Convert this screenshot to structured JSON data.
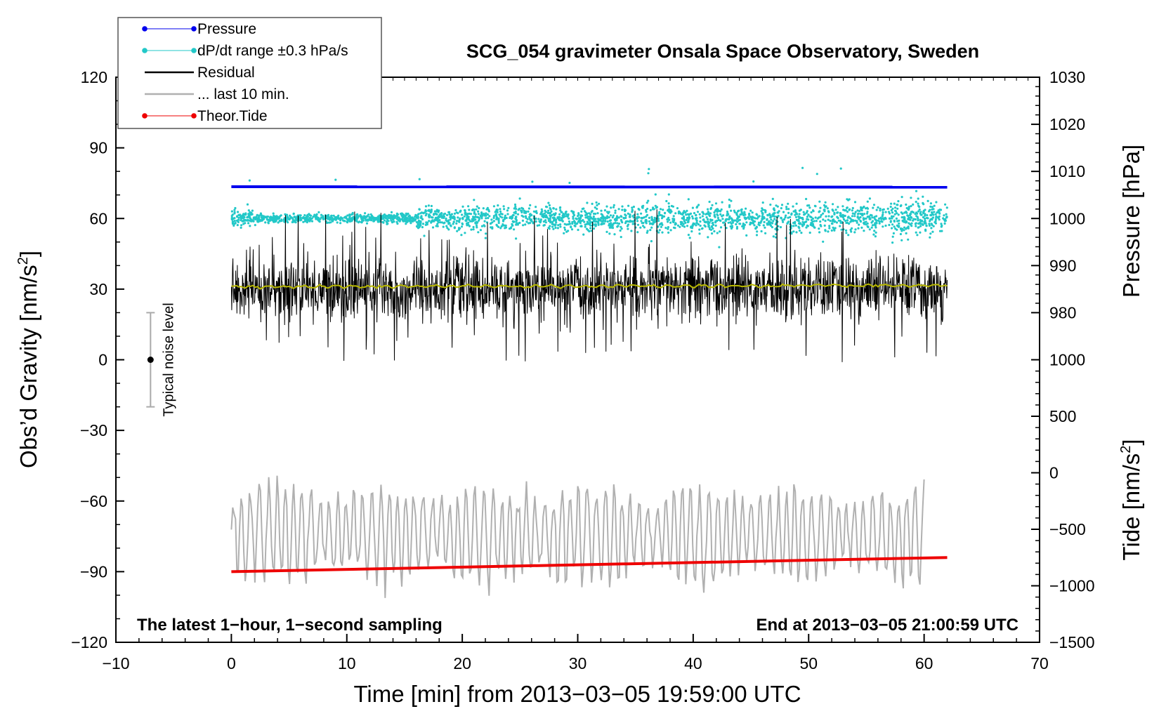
{
  "chart_data": {
    "type": "line",
    "title": "SCG_054 gravimeter Onsala Space Observatory, Sweden",
    "xlabel": "Time [min] from 2013−03−05 19:59:00 UTC",
    "ylabel": "Obs’d Gravity [nm/s²]",
    "ylabel_main": "Obs’d Gravity [nm/s",
    "ylabel_sup": "2",
    "ylabel_end": "]",
    "pressure_axis_label": "Pressure [hPa]",
    "tide_axis_label_main": "Tide [nm/s",
    "tide_axis_label_sup": "2",
    "tide_axis_label_end": "]",
    "xlim": [
      -10,
      70
    ],
    "ylim": [
      -120,
      120
    ],
    "x_ticks": [
      -10,
      0,
      10,
      20,
      30,
      40,
      50,
      60,
      70
    ],
    "x_tick_labels": [
      "−10",
      "0",
      "10",
      "20",
      "30",
      "40",
      "50",
      "60",
      "70"
    ],
    "y_ticks": [
      -120,
      -90,
      -60,
      -30,
      0,
      30,
      60,
      90,
      120
    ],
    "y_tick_labels": [
      "−120",
      "−90",
      "−60",
      "−30",
      "0",
      "30",
      "60",
      "90",
      "120"
    ],
    "pressure_ticks": [
      980,
      990,
      1000,
      1010,
      1020,
      1030
    ],
    "pressure_axis_map": {
      "value_at_gravity_30": 985,
      "value_at_gravity_120": 1030
    },
    "tide_ticks": [
      -1500,
      -1000,
      -500,
      0,
      500,
      1000
    ],
    "tide_tick_labels": [
      "−1500",
      "−1000",
      "−500",
      "0",
      "500",
      "1000"
    ],
    "tide_axis_map": {
      "value_at_gravity_minus120": -1500,
      "value_at_gravity_0": 1000
    },
    "legend": [
      {
        "label": "Pressure",
        "color": "#0000ee",
        "style": "line-dot"
      },
      {
        "label": "dP/dt range ±0.3 hPa/s",
        "color": "#22c8c8",
        "style": "line-dot"
      },
      {
        "label": "Residual",
        "color": "#000000",
        "style": "line"
      },
      {
        "label": "... last 10 min.",
        "color": "#b0b0b0",
        "style": "line"
      },
      {
        "label": "Theor.Tide",
        "color": "#ee0000",
        "style": "line-dot"
      }
    ],
    "series": [
      {
        "name": "Pressure",
        "color": "#0000ee",
        "x": [
          0,
          62
        ],
        "values": [
          73.5,
          73.3
        ]
      },
      {
        "name": "dP/dt range ±0.3 hPa/s",
        "color": "#22c8c8",
        "center": 60,
        "spread_start": 4,
        "spread_end": 8,
        "x_range": [
          0,
          62
        ]
      },
      {
        "name": "Residual",
        "color": "#000000",
        "center": 30,
        "typical_min": 15,
        "typical_max": 45,
        "extreme_min": -1,
        "extreme_max": 67,
        "x_range": [
          0,
          62
        ]
      },
      {
        "name": "Residual mean",
        "color": "#b8b800",
        "x": [
          0,
          62
        ],
        "values": [
          31,
          31.5
        ]
      },
      {
        "name": "... last 10 min.",
        "color": "#b0b0b0",
        "center": -74,
        "typical_min": -95,
        "typical_max": -55,
        "extreme_min": -109,
        "extreme_max": -45,
        "x_range": [
          0,
          60
        ]
      },
      {
        "name": "Theor.Tide",
        "color": "#ee0000",
        "x": [
          0,
          62
        ],
        "values": [
          -90,
          -84
        ]
      }
    ],
    "noise_marker": {
      "label": "Typical noise level",
      "x": -7,
      "center": 0,
      "low": -20,
      "high": 20
    },
    "annotations": {
      "left": "The latest 1−hour, 1−second sampling",
      "right": "End at 2013−03−05 21:00:59 UTC"
    }
  }
}
